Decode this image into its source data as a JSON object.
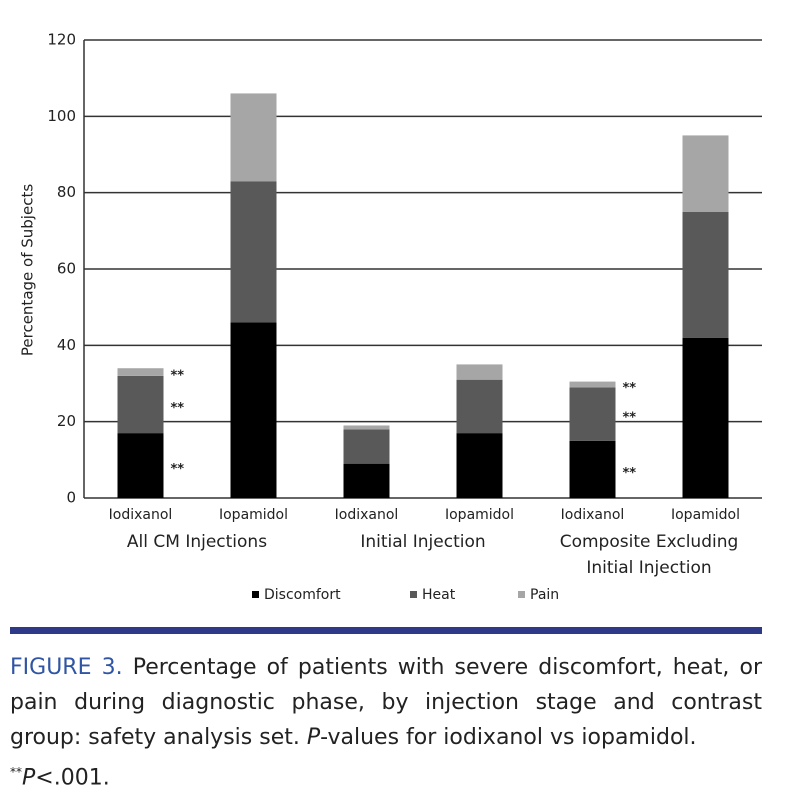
{
  "chart_data": {
    "type": "stacked_bar",
    "categories": [
      "Iodixanol",
      "Iopamidol",
      "Iodixanol",
      "Iopamidol",
      "Iodixanol",
      "Iopamidol"
    ],
    "groups": [
      [
        "All CM Injections"
      ],
      [
        "Initial Injection"
      ],
      [
        "Composite Excluding",
        "Initial Injection"
      ]
    ],
    "y_label": "Percentage of Subjects",
    "series": [
      {
        "name": "Discomfort",
        "color": "#000000",
        "values": [
          17,
          46,
          9,
          17,
          15,
          42
        ],
        "significance": [
          "**",
          null,
          null,
          null,
          "**",
          null
        ]
      },
      {
        "name": "Heat",
        "color": "#595959",
        "values": [
          15,
          37,
          9,
          14,
          14,
          33
        ],
        "significance": [
          "**",
          null,
          null,
          null,
          "**",
          null
        ]
      },
      {
        "name": "Pain",
        "color": "#a6a6a6",
        "values": [
          2,
          23,
          1,
          4,
          1.5,
          20
        ],
        "significance": [
          "**",
          null,
          null,
          null,
          "**",
          null
        ]
      }
    ],
    "ylim": [
      0,
      120
    ],
    "yticks": [
      0,
      20,
      40,
      60,
      80,
      100,
      120
    ],
    "grid": true
  },
  "caption": {
    "label": "FIGURE 3.",
    "text": "Percentage of patients with severe discomfort, heat, or pain during diagnostic phase, by injection stage and contrast group: safety analysis set.",
    "p_italic": "P",
    "p_rest": "-values for iodixanol vs iopamidol.",
    "note_mark": "**",
    "note_italic": "P",
    "note_rest": "<.001."
  }
}
